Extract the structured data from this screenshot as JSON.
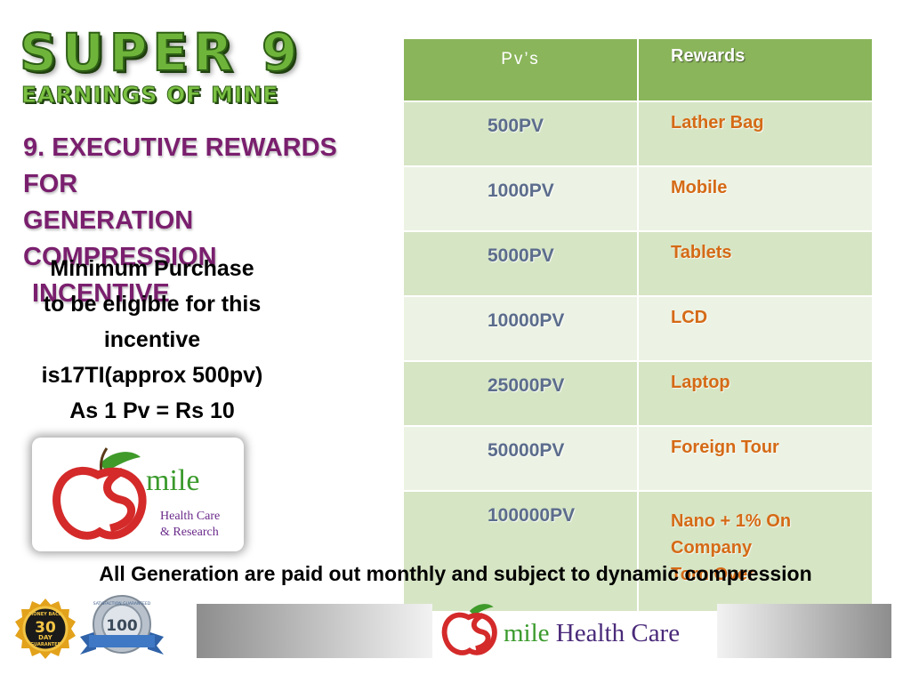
{
  "header": {
    "title": "SUPER 9",
    "subtitle": "EARNINGS OF MINE"
  },
  "section": {
    "heading_line1": "9. Executive Rewards for",
    "heading_line2": "Generation Compression",
    "heading_line3": "Incentive"
  },
  "requirement": {
    "line1": "Minimum Purchase",
    "line2": "to be eligible for this",
    "line3": "incentive",
    "line4": "is17TI(approx 500pv)",
    "line5": "As 1 Pv = Rs 10"
  },
  "table": {
    "col_pv": "Pv’s",
    "col_rewards": "Rewards",
    "rows": [
      {
        "pv": "500PV",
        "reward": "Lather Bag"
      },
      {
        "pv": "1000PV",
        "reward": "Mobile"
      },
      {
        "pv": "5000PV",
        "reward": "Tablets"
      },
      {
        "pv": "10000PV",
        "reward": "LCD"
      },
      {
        "pv": "25000PV",
        "reward": "Laptop"
      },
      {
        "pv": "50000PV",
        "reward": "Foreign Tour"
      },
      {
        "pv": "100000PV",
        "reward_line1": "Nano + 1% On",
        "reward_line2": "Company",
        "reward_line3": "Torn Over"
      }
    ]
  },
  "logo": {
    "word": "mile",
    "tag_line1": "Health Care",
    "tag_line2": "& Research"
  },
  "footer": {
    "note": "All Generation are paid out monthly and subject to dynamic compression",
    "badge1_top": "MONEY BACK",
    "badge1_num": "30",
    "badge1_unit": "DAY",
    "badge1_bottom": "GUARANTEE",
    "badge2_top": "SATISFACTION GUARANTEED",
    "badge2_num": "100",
    "logo_word": "mile",
    "logo_rest": "Health Care"
  },
  "colors": {
    "title_green": "#6fb43a",
    "heading_purple": "#7a1f6e",
    "table_header": "#8ab55b",
    "pv_text": "#5b6c8c",
    "reward_text": "#d56a16"
  }
}
